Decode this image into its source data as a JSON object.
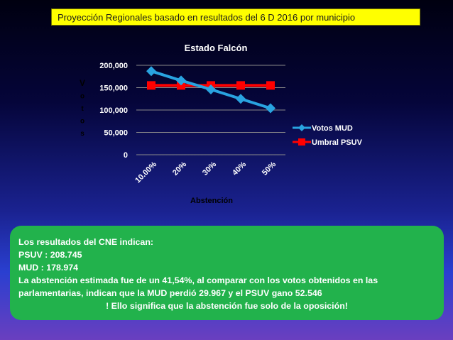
{
  "banner": {
    "text": "Proyección Regionales basado en resultados del 6 D 2016 por municipio"
  },
  "info": {
    "line1": "Los resultados del CNE indican:",
    "line2": "PSUV : 208.745",
    "line3": "MUD : 178.974",
    "line4": "La abstención estimada fue de un 41,54%, al comparar con los votos obtenidos en las parlamentarias, indican que la MUD perdió 29.967 y el PSUV gano 52.546",
    "line5": "! Ello significa que la abstención fue solo de la oposición!"
  },
  "chart_data": {
    "type": "line",
    "title": "Estado Falcón",
    "xlabel": "Abstención",
    "ylabel": "Votos",
    "categories": [
      "10.00%",
      "20%",
      "30%",
      "40%",
      "50%"
    ],
    "ylim": [
      0,
      200000
    ],
    "yticks": [
      "0",
      "50,000",
      "100,000",
      "150,000",
      "200,000"
    ],
    "grid": true,
    "legend": "right",
    "series": [
      {
        "name": "Votos MUD",
        "values": [
          187000,
          166000,
          146000,
          125000,
          104000
        ],
        "color": "#29a3e0",
        "marker": "diamond"
      },
      {
        "name": "Umbral PSUV",
        "values": [
          155000,
          155000,
          155000,
          155000,
          155000
        ],
        "color": "#ff0000",
        "marker": "square"
      }
    ]
  }
}
